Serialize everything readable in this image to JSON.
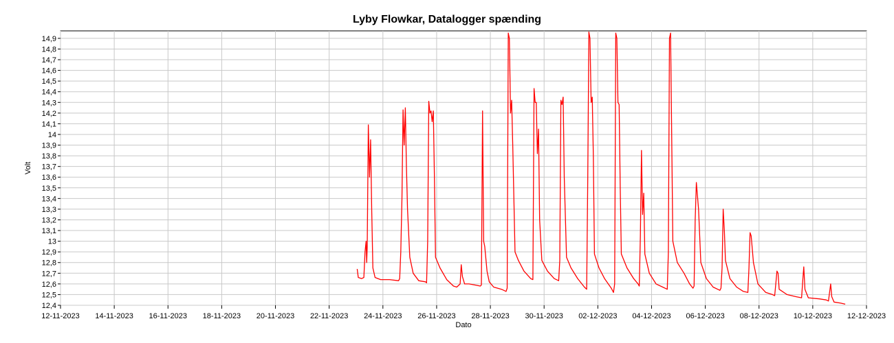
{
  "chart_data": {
    "type": "line",
    "title": "Lyby Flowkar, Datalogger spænding",
    "xlabel": "Dato",
    "ylabel": "Volt",
    "xlim": [
      "2023-11-12",
      "2023-12-12"
    ],
    "ylim": [
      12.4,
      14.97
    ],
    "x_ticks": [
      "12-11-2023",
      "14-11-2023",
      "16-11-2023",
      "18-11-2023",
      "20-11-2023",
      "22-11-2023",
      "24-11-2023",
      "26-11-2023",
      "28-11-2023",
      "30-11-2023",
      "02-12-2023",
      "04-12-2023",
      "06-12-2023",
      "08-12-2023",
      "10-12-2023",
      "12-12-2023"
    ],
    "y_ticks": [
      "12,4",
      "12,5",
      "12,6",
      "12,7",
      "12,8",
      "12,9",
      "13",
      "13,1",
      "13,2",
      "13,3",
      "13,4",
      "13,5",
      "13,6",
      "13,7",
      "13,8",
      "13,9",
      "14",
      "14,1",
      "14,2",
      "14,3",
      "14,4",
      "14,5",
      "14,6",
      "14,7",
      "14,8",
      "14,9"
    ],
    "grid": true,
    "line_color": "#ff0000",
    "series": [
      {
        "points": [
          [
            "2023-11-23 01:00",
            12.74
          ],
          [
            "2023-11-23 02:00",
            12.66
          ],
          [
            "2023-11-23 05:00",
            12.65
          ],
          [
            "2023-11-23 07:00",
            12.66
          ],
          [
            "2023-11-23 08:00",
            12.9
          ],
          [
            "2023-11-23 09:00",
            13.0
          ],
          [
            "2023-11-23 09:30",
            12.8
          ],
          [
            "2023-11-23 10:00",
            12.95
          ],
          [
            "2023-11-23 11:00",
            14.09
          ],
          [
            "2023-11-23 12:00",
            13.6
          ],
          [
            "2023-11-23 13:00",
            13.95
          ],
          [
            "2023-11-23 14:00",
            13.3
          ],
          [
            "2023-11-23 15:00",
            12.75
          ],
          [
            "2023-11-23 17:00",
            12.66
          ],
          [
            "2023-11-23 22:00",
            12.64
          ],
          [
            "2023-11-24 06:00",
            12.64
          ],
          [
            "2023-11-24 14:00",
            12.63
          ],
          [
            "2023-11-24 15:00",
            12.65
          ],
          [
            "2023-11-24 16:00",
            12.9
          ],
          [
            "2023-11-24 17:00",
            13.4
          ],
          [
            "2023-11-24 18:00",
            14.23
          ],
          [
            "2023-11-24 19:00",
            13.9
          ],
          [
            "2023-11-24 20:00",
            14.25
          ],
          [
            "2023-11-24 21:00",
            13.7
          ],
          [
            "2023-11-24 22:00",
            13.3
          ],
          [
            "2023-11-25 00:00",
            12.85
          ],
          [
            "2023-11-25 03:00",
            12.7
          ],
          [
            "2023-11-25 08:00",
            12.63
          ],
          [
            "2023-11-25 14:00",
            12.62
          ],
          [
            "2023-11-25 15:00",
            12.61
          ],
          [
            "2023-11-25 16:00",
            13.0
          ],
          [
            "2023-11-25 17:00",
            14.31
          ],
          [
            "2023-11-25 18:00",
            14.2
          ],
          [
            "2023-11-25 19:00",
            14.22
          ],
          [
            "2023-11-25 20:00",
            14.12
          ],
          [
            "2023-11-25 21:00",
            14.22
          ],
          [
            "2023-11-25 22:00",
            13.6
          ],
          [
            "2023-11-25 23:00",
            12.85
          ],
          [
            "2023-11-26 03:00",
            12.75
          ],
          [
            "2023-11-26 09:00",
            12.64
          ],
          [
            "2023-11-26 15:00",
            12.58
          ],
          [
            "2023-11-26 18:00",
            12.57
          ],
          [
            "2023-11-26 21:00",
            12.6
          ],
          [
            "2023-11-26 22:00",
            12.78
          ],
          [
            "2023-11-26 23:00",
            12.67
          ],
          [
            "2023-11-27 01:00",
            12.6
          ],
          [
            "2023-11-27 05:00",
            12.6
          ],
          [
            "2023-11-27 10:00",
            12.59
          ],
          [
            "2023-11-27 15:00",
            12.58
          ],
          [
            "2023-11-27 16:00",
            12.59
          ],
          [
            "2023-11-27 17:00",
            14.22
          ],
          [
            "2023-11-27 18:00",
            13.0
          ],
          [
            "2023-11-27 19:00",
            12.95
          ],
          [
            "2023-11-27 21:00",
            12.72
          ],
          [
            "2023-11-27 23:00",
            12.62
          ],
          [
            "2023-11-28 03:00",
            12.57
          ],
          [
            "2023-11-28 10:00",
            12.55
          ],
          [
            "2023-11-28 14:00",
            12.53
          ],
          [
            "2023-11-28 15:00",
            12.56
          ],
          [
            "2023-11-28 16:00",
            14.95
          ],
          [
            "2023-11-28 17:00",
            14.9
          ],
          [
            "2023-11-28 18:00",
            14.2
          ],
          [
            "2023-11-28 19:00",
            14.32
          ],
          [
            "2023-11-28 20:00",
            13.9
          ],
          [
            "2023-11-28 22:00",
            12.9
          ],
          [
            "2023-11-29 01:00",
            12.82
          ],
          [
            "2023-11-29 06:00",
            12.72
          ],
          [
            "2023-11-29 12:00",
            12.65
          ],
          [
            "2023-11-29 14:00",
            12.64
          ],
          [
            "2023-11-29 15:00",
            14.43
          ],
          [
            "2023-11-29 16:00",
            14.3
          ],
          [
            "2023-11-29 17:00",
            14.3
          ],
          [
            "2023-11-29 18:00",
            13.82
          ],
          [
            "2023-11-29 19:00",
            14.05
          ],
          [
            "2023-11-29 20:00",
            13.2
          ],
          [
            "2023-11-29 22:00",
            12.82
          ],
          [
            "2023-11-30 03:00",
            12.72
          ],
          [
            "2023-11-30 09:00",
            12.65
          ],
          [
            "2023-11-30 13:00",
            12.63
          ],
          [
            "2023-11-30 14:00",
            12.82
          ],
          [
            "2023-11-30 15:00",
            14.32
          ],
          [
            "2023-11-30 16:00",
            14.28
          ],
          [
            "2023-11-30 17:00",
            14.35
          ],
          [
            "2023-11-30 18:00",
            13.6
          ],
          [
            "2023-11-30 20:00",
            12.85
          ],
          [
            "2023-12-01 00:00",
            12.75
          ],
          [
            "2023-12-01 06:00",
            12.65
          ],
          [
            "2023-12-01 12:00",
            12.57
          ],
          [
            "2023-12-01 14:00",
            12.55
          ],
          [
            "2023-12-01 15:00",
            13.6
          ],
          [
            "2023-12-01 16:00",
            14.96
          ],
          [
            "2023-12-01 17:00",
            14.9
          ],
          [
            "2023-12-01 18:00",
            14.3
          ],
          [
            "2023-12-01 19:00",
            14.35
          ],
          [
            "2023-12-01 20:00",
            13.8
          ],
          [
            "2023-12-01 21:00",
            12.88
          ],
          [
            "2023-12-02 01:00",
            12.75
          ],
          [
            "2023-12-02 06:00",
            12.65
          ],
          [
            "2023-12-02 12:00",
            12.56
          ],
          [
            "2023-12-02 14:00",
            12.52
          ],
          [
            "2023-12-02 15:00",
            12.6
          ],
          [
            "2023-12-02 16:00",
            14.95
          ],
          [
            "2023-12-02 17:00",
            14.9
          ],
          [
            "2023-12-02 18:00",
            14.3
          ],
          [
            "2023-12-02 19:00",
            14.28
          ],
          [
            "2023-12-02 20:00",
            13.5
          ],
          [
            "2023-12-02 21:00",
            12.88
          ],
          [
            "2023-12-03 02:00",
            12.75
          ],
          [
            "2023-12-03 08:00",
            12.65
          ],
          [
            "2023-12-03 12:00",
            12.6
          ],
          [
            "2023-12-03 13:00",
            12.58
          ],
          [
            "2023-12-03 14:00",
            13.05
          ],
          [
            "2023-12-03 15:00",
            13.85
          ],
          [
            "2023-12-03 16:00",
            13.25
          ],
          [
            "2023-12-03 17:00",
            13.45
          ],
          [
            "2023-12-03 18:00",
            12.88
          ],
          [
            "2023-12-03 22:00",
            12.7
          ],
          [
            "2023-12-04 04:00",
            12.6
          ],
          [
            "2023-12-04 10:00",
            12.57
          ],
          [
            "2023-12-04 14:00",
            12.55
          ],
          [
            "2023-12-04 15:00",
            12.9
          ],
          [
            "2023-12-04 16:00",
            14.9
          ],
          [
            "2023-12-04 17:00",
            14.95
          ],
          [
            "2023-12-04 19:00",
            13.0
          ],
          [
            "2023-12-04 23:00",
            12.8
          ],
          [
            "2023-12-05 05:00",
            12.7
          ],
          [
            "2023-12-05 10:00",
            12.6
          ],
          [
            "2023-12-05 13:00",
            12.56
          ],
          [
            "2023-12-05 14:00",
            12.58
          ],
          [
            "2023-12-05 15:00",
            13.2
          ],
          [
            "2023-12-05 16:00",
            13.55
          ],
          [
            "2023-12-05 18:00",
            13.3
          ],
          [
            "2023-12-05 20:00",
            12.8
          ],
          [
            "2023-12-06 01:00",
            12.65
          ],
          [
            "2023-12-06 07:00",
            12.57
          ],
          [
            "2023-12-06 13:00",
            12.54
          ],
          [
            "2023-12-06 14:00",
            12.56
          ],
          [
            "2023-12-06 15:00",
            12.75
          ],
          [
            "2023-12-06 16:00",
            13.3
          ],
          [
            "2023-12-06 17:00",
            13.1
          ],
          [
            "2023-12-06 18:00",
            12.82
          ],
          [
            "2023-12-06 22:00",
            12.65
          ],
          [
            "2023-12-07 04:00",
            12.57
          ],
          [
            "2023-12-07 10:00",
            12.53
          ],
          [
            "2023-12-07 14:00",
            12.52
          ],
          [
            "2023-12-07 15:00",
            12.75
          ],
          [
            "2023-12-07 16:00",
            13.08
          ],
          [
            "2023-12-07 17:00",
            13.05
          ],
          [
            "2023-12-07 19:00",
            12.8
          ],
          [
            "2023-12-07 23:00",
            12.6
          ],
          [
            "2023-12-08 06:00",
            12.52
          ],
          [
            "2023-12-08 12:00",
            12.5
          ],
          [
            "2023-12-08 14:00",
            12.49
          ],
          [
            "2023-12-08 15:00",
            12.6
          ],
          [
            "2023-12-08 16:00",
            12.72
          ],
          [
            "2023-12-08 17:00",
            12.7
          ],
          [
            "2023-12-08 18:00",
            12.55
          ],
          [
            "2023-12-09 01:00",
            12.5
          ],
          [
            "2023-12-09 09:00",
            12.48
          ],
          [
            "2023-12-09 14:00",
            12.47
          ],
          [
            "2023-12-09 15:00",
            12.62
          ],
          [
            "2023-12-09 16:00",
            12.76
          ],
          [
            "2023-12-09 17:00",
            12.55
          ],
          [
            "2023-12-09 20:00",
            12.47
          ],
          [
            "2023-12-10 06:00",
            12.46
          ],
          [
            "2023-12-10 12:00",
            12.45
          ],
          [
            "2023-12-10 14:00",
            12.44
          ],
          [
            "2023-12-10 15:00",
            12.52
          ],
          [
            "2023-12-10 16:00",
            12.6
          ],
          [
            "2023-12-10 17:00",
            12.48
          ],
          [
            "2023-12-10 19:00",
            12.43
          ],
          [
            "2023-12-11 01:00",
            12.42
          ],
          [
            "2023-12-11 05:00",
            12.41
          ]
        ]
      }
    ]
  }
}
